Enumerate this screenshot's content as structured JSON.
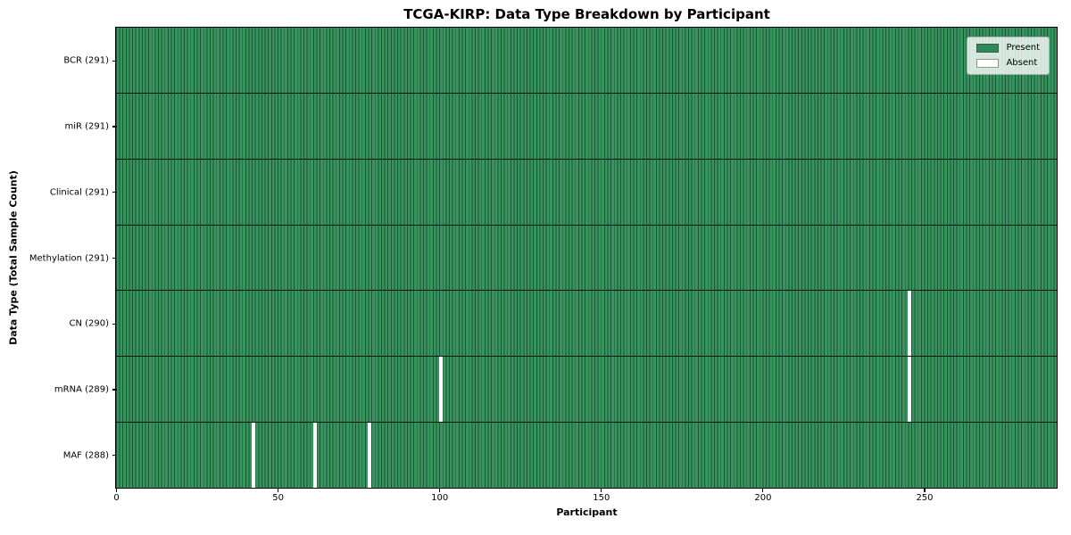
{
  "chart_data": {
    "type": "heatmap",
    "title": "TCGA-KIRP: Data Type Breakdown by Participant",
    "xlabel": "Participant",
    "ylabel": "Data Type (Total Sample Count)",
    "n_participants": 291,
    "x_ticks": [
      0,
      50,
      100,
      150,
      200,
      250
    ],
    "legend": [
      {
        "label": "Present",
        "color": "#2e8b57"
      },
      {
        "label": "Absent",
        "color": "#ffffff"
      }
    ],
    "rows": [
      {
        "data_type": "BCR",
        "label": "BCR (291)",
        "present_count": 291,
        "absent_participants": []
      },
      {
        "data_type": "miR",
        "label": "miR (291)",
        "present_count": 291,
        "absent_participants": []
      },
      {
        "data_type": "Clinical",
        "label": "Clinical (291)",
        "present_count": 291,
        "absent_participants": []
      },
      {
        "data_type": "Methylation",
        "label": "Methylation (291)",
        "present_count": 291,
        "absent_participants": []
      },
      {
        "data_type": "CN",
        "label": "CN (290)",
        "present_count": 290,
        "absent_participants": [
          245
        ]
      },
      {
        "data_type": "mRNA",
        "label": "mRNA (289)",
        "present_count": 289,
        "absent_participants": [
          100,
          245
        ]
      },
      {
        "data_type": "MAF",
        "label": "MAF (288)",
        "present_count": 288,
        "absent_participants": [
          42,
          61,
          78
        ]
      }
    ]
  }
}
